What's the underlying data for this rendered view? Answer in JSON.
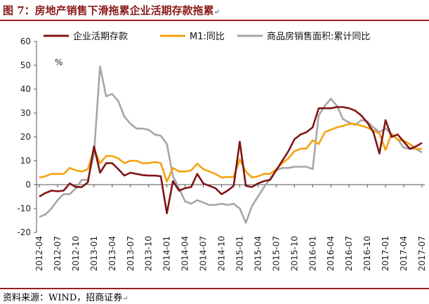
{
  "header": {
    "title": "图 7：房地产销售下滑拖累企业活期存款拖累"
  },
  "footer": {
    "source": "资料来源：WIND，招商证券"
  },
  "chart_data": {
    "type": "line",
    "ylabel": "%",
    "ylim": [
      -20,
      60
    ],
    "yticks": [
      -20,
      -10,
      0,
      10,
      20,
      30,
      40,
      50,
      60
    ],
    "grid": false,
    "legend_position": "top",
    "xtick_labels": [
      "2012-04",
      "2012-07",
      "2012-10",
      "2013-01",
      "2013-04",
      "2013-07",
      "2013-10",
      "2014-01",
      "2014-04",
      "2014-07",
      "2014-10",
      "2015-01",
      "2015-04",
      "2015-07",
      "2015-10",
      "2016-01",
      "2016-04",
      "2016-07",
      "2016-10",
      "2017-01",
      "2017-04",
      "2017-07"
    ],
    "x": [
      "2012-04",
      "2012-05",
      "2012-06",
      "2012-07",
      "2012-08",
      "2012-09",
      "2012-10",
      "2012-11",
      "2012-12",
      "2013-01",
      "2013-02",
      "2013-03",
      "2013-04",
      "2013-05",
      "2013-06",
      "2013-07",
      "2013-08",
      "2013-09",
      "2013-10",
      "2013-11",
      "2013-12",
      "2014-01",
      "2014-02",
      "2014-03",
      "2014-04",
      "2014-05",
      "2014-06",
      "2014-07",
      "2014-08",
      "2014-09",
      "2014-10",
      "2014-11",
      "2014-12",
      "2015-01",
      "2015-02",
      "2015-03",
      "2015-04",
      "2015-05",
      "2015-06",
      "2015-07",
      "2015-08",
      "2015-09",
      "2015-10",
      "2015-11",
      "2015-12",
      "2016-01",
      "2016-02",
      "2016-03",
      "2016-04",
      "2016-05",
      "2016-06",
      "2016-07",
      "2016-08",
      "2016-09",
      "2016-10",
      "2016-11",
      "2016-12",
      "2017-01",
      "2017-02",
      "2017-03",
      "2017-04",
      "2017-05",
      "2017-06",
      "2017-07"
    ],
    "series": [
      {
        "name": "企业活期存款",
        "color": "#7f1416",
        "values": [
          -5,
          -3.5,
          -2.5,
          -2.8,
          -2.5,
          0.5,
          -1,
          -1,
          1,
          16,
          5,
          9,
          9,
          6.5,
          3.8,
          5,
          4.5,
          4,
          3.8,
          3.8,
          3.5,
          -12,
          1.5,
          -2.5,
          -1.5,
          -1,
          4.5,
          0.5,
          -0.5,
          -1.5,
          -4,
          -2.5,
          -0.5,
          18,
          -0.5,
          -1,
          0.5,
          1.5,
          2,
          6,
          10,
          14,
          19,
          21,
          22,
          24,
          32,
          32,
          32,
          32.5,
          32.5,
          32,
          31,
          29,
          26,
          22,
          13,
          27,
          20,
          21,
          18,
          15,
          16,
          17.5
        ]
      },
      {
        "name": "M1:同比",
        "color": "#f4a20f",
        "values": [
          3,
          3.5,
          4.5,
          4.5,
          4.5,
          7,
          6,
          5.5,
          6.5,
          15,
          9,
          12,
          12,
          11,
          9,
          10,
          10,
          9,
          9,
          9.5,
          9,
          1.2,
          7,
          5.5,
          5.5,
          6,
          8.8,
          6.5,
          5.5,
          4.5,
          3,
          3.2,
          3.2,
          10.6,
          5.5,
          3,
          3.5,
          4.5,
          4.5,
          6.5,
          9,
          11,
          14,
          15,
          15.2,
          18.6,
          17,
          22,
          23,
          24,
          24.6,
          25.4,
          25.4,
          24.7,
          23.9,
          22.7,
          21.4,
          14.5,
          21.4,
          18.8,
          18.5,
          17,
          15,
          15
        ]
      },
      {
        "name": "商品房销售面积:累计同比",
        "color": "#a6a6a6",
        "values": [
          -13.5,
          -12.5,
          -10,
          -6.5,
          -4,
          -4,
          -1.5,
          2,
          2,
          13,
          49.5,
          37,
          38,
          35,
          28.5,
          25.5,
          23.5,
          23.5,
          23,
          21,
          20.5,
          17,
          3.5,
          -1.5,
          -7,
          -8,
          -6.5,
          -7.5,
          -8.5,
          -8.5,
          -8,
          -8.5,
          -8,
          -10,
          -16,
          -9,
          -5,
          -1,
          2.5,
          6,
          7,
          7,
          7.5,
          7.5,
          7.5,
          6.5,
          29,
          33,
          36,
          33,
          27.5,
          26,
          25,
          27,
          26.5,
          24,
          22,
          23.6,
          21,
          19,
          15.5,
          15,
          15,
          13.5
        ]
      }
    ]
  }
}
